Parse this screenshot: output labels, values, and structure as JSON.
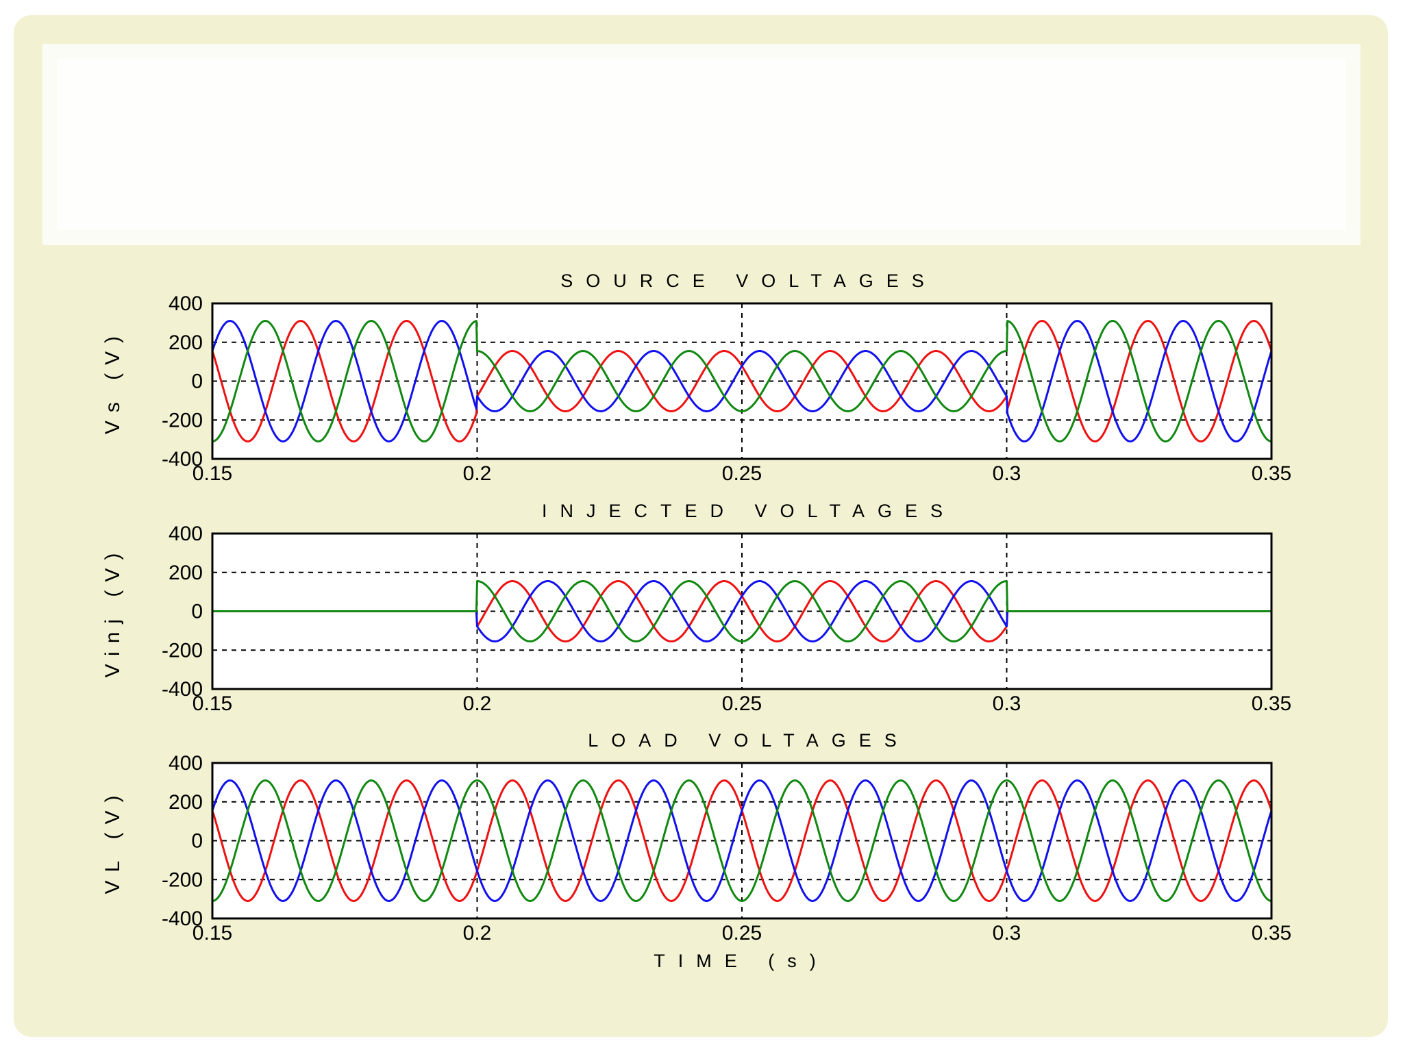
{
  "colors": {
    "slide_background": "#f2f2d2",
    "plot_background": "#ffffff",
    "phase_a": "#ee1111",
    "phase_b": "#1111ee",
    "phase_c": "#118811"
  },
  "chart_data": [
    {
      "type": "line",
      "title": "SOURCE VOLTAGES",
      "ylabel": "Vs (V)",
      "xlabel": "",
      "xlim": [
        0.15,
        0.35
      ],
      "ylim": [
        -400,
        400
      ],
      "xticks": [
        "0.15",
        "0.2",
        "0.25",
        "0.3",
        "0.35"
      ],
      "yticks": [
        "400",
        "200",
        "0",
        "-200",
        "-400"
      ],
      "grid": true,
      "frequency_hz": 50,
      "sag_window": [
        0.2,
        0.3
      ],
      "series": [
        {
          "phase_deg": -30,
          "amplitude_normal": 310,
          "amplitude_sag": 155,
          "color": "#ee1111"
        },
        {
          "phase_deg": -150,
          "amplitude_normal": 310,
          "amplitude_sag": 155,
          "color": "#1111ee"
        },
        {
          "phase_deg": 90,
          "amplitude_normal": 310,
          "amplitude_sag": 155,
          "color": "#118811"
        }
      ]
    },
    {
      "type": "line",
      "title": "INJECTED VOLTAGES",
      "ylabel": "Vinj (V)",
      "xlabel": "",
      "xlim": [
        0.15,
        0.35
      ],
      "ylim": [
        -400,
        400
      ],
      "xticks": [
        "0.15",
        "0.2",
        "0.25",
        "0.3",
        "0.35"
      ],
      "yticks": [
        "400",
        "200",
        "0",
        "-200",
        "-400"
      ],
      "grid": true,
      "frequency_hz": 50,
      "sag_window": [
        0.2,
        0.3
      ],
      "series": [
        {
          "phase_deg": -30,
          "amplitude_normal": 0,
          "amplitude_sag": 155,
          "color": "#ee1111"
        },
        {
          "phase_deg": -150,
          "amplitude_normal": 0,
          "amplitude_sag": 155,
          "color": "#1111ee"
        },
        {
          "phase_deg": 90,
          "amplitude_normal": 0,
          "amplitude_sag": 155,
          "color": "#118811"
        }
      ]
    },
    {
      "type": "line",
      "title": "LOAD VOLTAGES",
      "ylabel": "VL (V)",
      "xlabel": "TIME (s)",
      "xlim": [
        0.15,
        0.35
      ],
      "ylim": [
        -400,
        400
      ],
      "xticks": [
        "0.15",
        "0.2",
        "0.25",
        "0.3",
        "0.35"
      ],
      "yticks": [
        "400",
        "200",
        "0",
        "-200",
        "-400"
      ],
      "grid": true,
      "frequency_hz": 50,
      "sag_window": [
        0.2,
        0.3
      ],
      "series": [
        {
          "phase_deg": -30,
          "amplitude_normal": 310,
          "amplitude_sag": 310,
          "color": "#ee1111"
        },
        {
          "phase_deg": -150,
          "amplitude_normal": 310,
          "amplitude_sag": 310,
          "color": "#1111ee"
        },
        {
          "phase_deg": 90,
          "amplitude_normal": 310,
          "amplitude_sag": 310,
          "color": "#118811"
        }
      ]
    }
  ]
}
